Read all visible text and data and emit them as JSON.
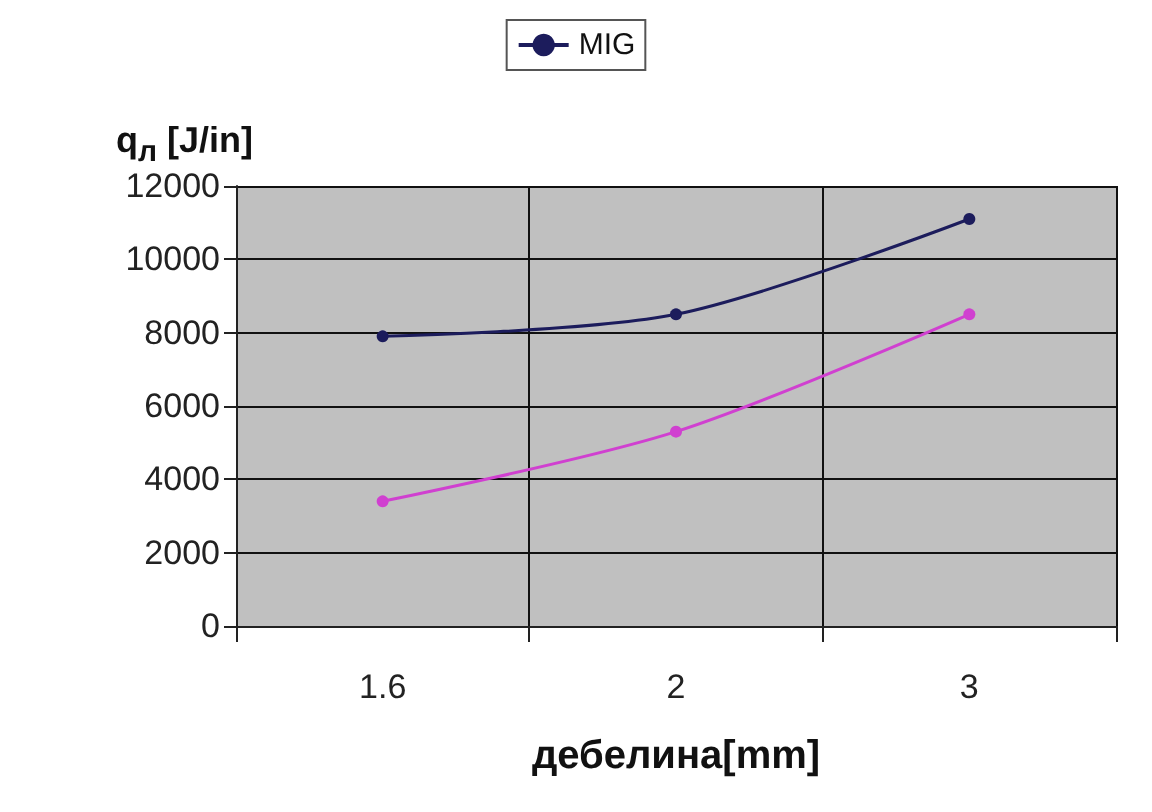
{
  "chart_data": {
    "type": "line",
    "ylabel": "q$_{л}$ [J/in]",
    "xlabel": "дебелина[mm]",
    "categories": [
      "1.6",
      "2",
      "3"
    ],
    "series": [
      {
        "name": "MIG",
        "color": "#1c1c5c",
        "values": [
          7900,
          8500,
          11100
        ]
      },
      {
        "color": "#d040d0",
        "values": [
          3400,
          5300,
          8500
        ]
      }
    ],
    "ylim": [
      0,
      12000
    ],
    "yticks": [
      0,
      2000,
      4000,
      6000,
      8000,
      10000,
      12000
    ],
    "grid": true,
    "legend": "top",
    "marker": "circle"
  }
}
